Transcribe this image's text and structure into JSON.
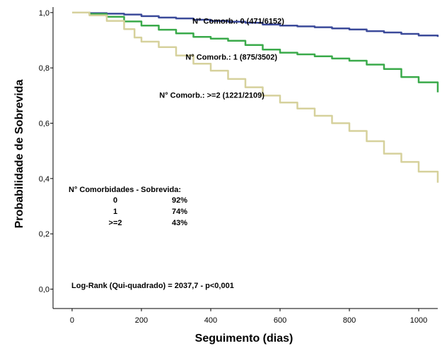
{
  "chart_data": {
    "type": "line",
    "title": "",
    "xlabel": "Seguimento (dias)",
    "ylabel": "Probabilidade de Sobrevida",
    "xlim": [
      -55,
      1055
    ],
    "ylim": [
      -0.07,
      1.02
    ],
    "x_ticks": [
      0,
      200,
      400,
      600,
      800,
      1000
    ],
    "y_ticks": [
      0.0,
      0.2,
      0.4,
      0.6,
      0.8,
      1.0
    ],
    "x_tick_labels": [
      "0",
      "200",
      "400",
      "600",
      "800",
      "1000"
    ],
    "y_tick_labels": [
      "0,0",
      "0,2",
      "0,4",
      "0,6",
      "0,8",
      "1,0"
    ],
    "grid": false,
    "series": [
      {
        "name": "N° Comorb.: 0 (471/6152)",
        "color": "#3b4a9a",
        "x": [
          0,
          50,
          100,
          150,
          200,
          250,
          300,
          350,
          400,
          450,
          500,
          550,
          600,
          650,
          700,
          750,
          800,
          850,
          900,
          950,
          1000,
          1055
        ],
        "y": [
          1.0,
          0.998,
          0.996,
          0.993,
          0.987,
          0.982,
          0.979,
          0.974,
          0.97,
          0.967,
          0.963,
          0.957,
          0.953,
          0.95,
          0.947,
          0.943,
          0.939,
          0.933,
          0.928,
          0.923,
          0.917,
          0.912
        ]
      },
      {
        "name": "N° Comorb.: 1 (875/3502)",
        "color": "#3aaa4a",
        "x": [
          0,
          50,
          100,
          150,
          200,
          250,
          300,
          350,
          400,
          450,
          500,
          550,
          600,
          650,
          700,
          750,
          800,
          850,
          900,
          950,
          1000,
          1055
        ],
        "y": [
          1.0,
          0.995,
          0.985,
          0.968,
          0.953,
          0.938,
          0.925,
          0.912,
          0.906,
          0.898,
          0.883,
          0.866,
          0.855,
          0.849,
          0.842,
          0.834,
          0.826,
          0.812,
          0.796,
          0.767,
          0.748,
          0.712
        ]
      },
      {
        "name": "N° Comorb.: >=2 (1221/2109)",
        "color": "#d6d19c",
        "x": [
          0,
          50,
          100,
          150,
          180,
          200,
          250,
          300,
          350,
          400,
          450,
          500,
          550,
          600,
          650,
          700,
          750,
          800,
          850,
          900,
          950,
          1000,
          1055
        ],
        "y": [
          1.0,
          0.99,
          0.97,
          0.94,
          0.91,
          0.895,
          0.875,
          0.845,
          0.815,
          0.79,
          0.76,
          0.73,
          0.7,
          0.675,
          0.653,
          0.627,
          0.6,
          0.572,
          0.535,
          0.49,
          0.46,
          0.425,
          0.385
        ]
      }
    ],
    "curve_labels": [
      {
        "text": "N° Comorb.: 0 (471/6152)",
        "x": 612,
        "y": 0.96
      },
      {
        "text": "N° Comorb.: 1 (875/3502)",
        "x": 592,
        "y": 0.83
      },
      {
        "text": "N° Comorb.: >=2 (1221/2109)",
        "x": 555,
        "y": 0.692
      }
    ],
    "annotations": {
      "table_header": "N° Comorbidades - Sobrevida:",
      "table_rows": [
        {
          "group": "0",
          "survival": "92%"
        },
        {
          "group": "1",
          "survival": "74%"
        },
        {
          "group": ">=2",
          "survival": "43%"
        }
      ],
      "log_rank": "Log-Rank (Qui-quadrado) = 2037,7 - p<0,001"
    }
  }
}
